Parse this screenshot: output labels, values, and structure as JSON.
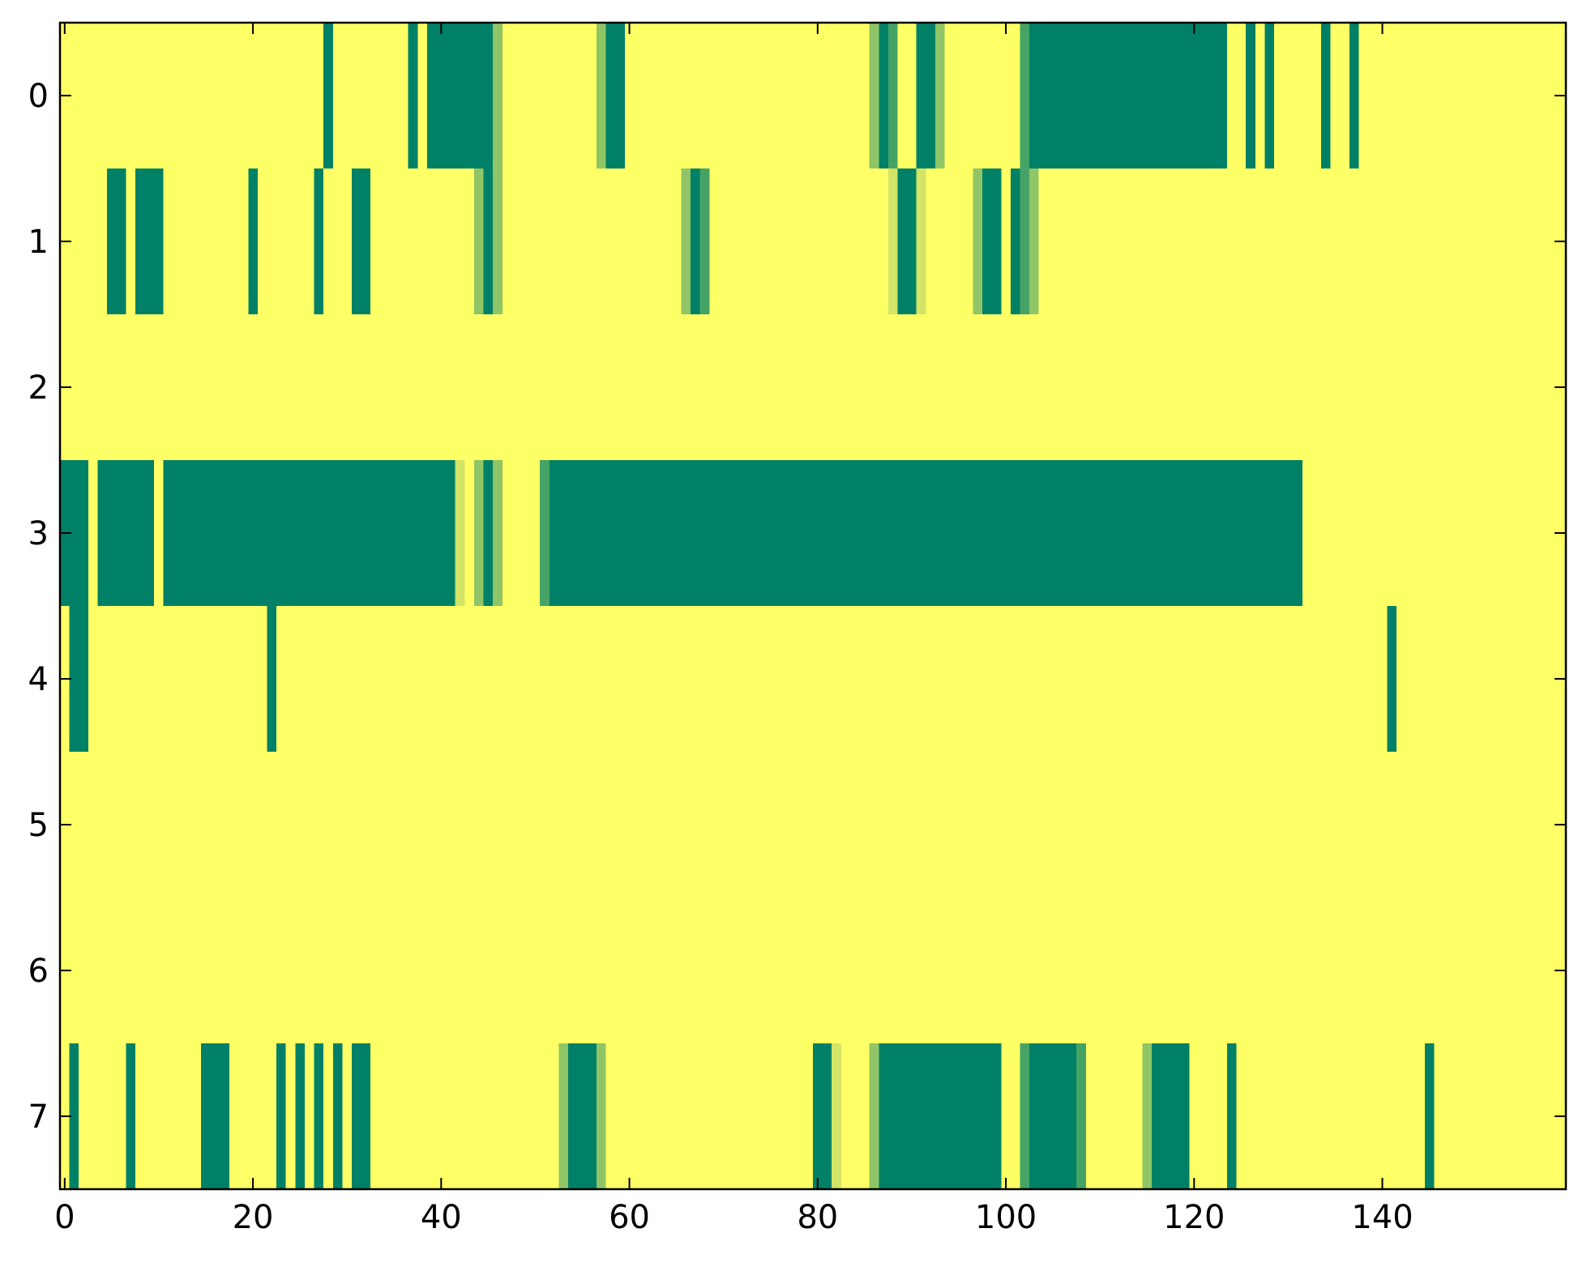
{
  "colors": {
    "yellow": "#ffff66",
    "green": "#008066",
    "mid1": "#45a366",
    "mid2": "#8fc566",
    "light": "#d4e466"
  },
  "chart_data": {
    "type": "heatmap",
    "title": "",
    "xlabel": "",
    "ylabel": "",
    "colormap": "summer (reversed): 0 = yellow, 1 = green",
    "xlim": [
      -0.5,
      159.5
    ],
    "ylim": [
      7.5,
      -0.5
    ],
    "x_ticks": [
      0,
      20,
      40,
      60,
      80,
      100,
      120,
      140
    ],
    "y_ticks": [
      0,
      1,
      2,
      3,
      4,
      5,
      6,
      7
    ],
    "n_cols": 160,
    "n_rows": 8,
    "background_value": 0,
    "cells_note": "Each segment is [row, start_col, end_col_inclusive, value]; all other cells have value 0.",
    "segments": [
      [
        0,
        28,
        28,
        1.0
      ],
      [
        0,
        37,
        37,
        1.0
      ],
      [
        0,
        39,
        45,
        1.0
      ],
      [
        0,
        46,
        46,
        0.7
      ],
      [
        0,
        57,
        57,
        0.5
      ],
      [
        0,
        58,
        59,
        1.0
      ],
      [
        0,
        86,
        86,
        0.5
      ],
      [
        0,
        87,
        87,
        1.0
      ],
      [
        0,
        88,
        88,
        0.8
      ],
      [
        0,
        91,
        92,
        1.0
      ],
      [
        0,
        93,
        93,
        0.5
      ],
      [
        0,
        102,
        102,
        0.8
      ],
      [
        0,
        103,
        123,
        1.0
      ],
      [
        0,
        126,
        126,
        1.0
      ],
      [
        0,
        128,
        128,
        1.0
      ],
      [
        0,
        134,
        134,
        1.0
      ],
      [
        0,
        137,
        137,
        1.0
      ],
      [
        1,
        5,
        6,
        1.0
      ],
      [
        1,
        8,
        10,
        1.0
      ],
      [
        1,
        20,
        20,
        1.0
      ],
      [
        1,
        27,
        27,
        1.0
      ],
      [
        1,
        31,
        32,
        1.0
      ],
      [
        1,
        44,
        44,
        0.5
      ],
      [
        1,
        45,
        45,
        1.0
      ],
      [
        1,
        46,
        46,
        0.7
      ],
      [
        1,
        66,
        66,
        0.5
      ],
      [
        1,
        67,
        67,
        1.0
      ],
      [
        1,
        68,
        68,
        0.8
      ],
      [
        1,
        88,
        88,
        0.2
      ],
      [
        1,
        89,
        90,
        1.0
      ],
      [
        1,
        91,
        91,
        0.2
      ],
      [
        1,
        97,
        97,
        0.5
      ],
      [
        1,
        98,
        99,
        1.0
      ],
      [
        1,
        101,
        101,
        1.0
      ],
      [
        1,
        102,
        102,
        0.8
      ],
      [
        1,
        103,
        103,
        0.5
      ],
      [
        3,
        -0.5,
        2,
        1.0
      ],
      [
        3,
        4,
        9,
        1.0
      ],
      [
        3,
        11,
        41,
        1.0
      ],
      [
        3,
        42,
        42,
        0.2
      ],
      [
        3,
        44,
        44,
        0.5
      ],
      [
        3,
        45,
        45,
        1.0
      ],
      [
        3,
        46,
        46,
        0.7
      ],
      [
        3,
        51,
        51,
        0.8
      ],
      [
        3,
        52,
        131,
        1.0
      ],
      [
        4,
        1,
        2,
        1.0
      ],
      [
        4,
        22,
        22,
        1.0
      ],
      [
        4,
        141,
        141,
        1.0
      ],
      [
        7,
        1,
        1,
        1.0
      ],
      [
        7,
        7,
        7,
        1.0
      ],
      [
        7,
        15,
        17,
        1.0
      ],
      [
        7,
        23,
        23,
        1.0
      ],
      [
        7,
        25,
        25,
        1.0
      ],
      [
        7,
        27,
        27,
        1.0
      ],
      [
        7,
        29,
        29,
        1.0
      ],
      [
        7,
        31,
        32,
        1.0
      ],
      [
        7,
        53,
        53,
        0.7
      ],
      [
        7,
        54,
        56,
        1.0
      ],
      [
        7,
        57,
        57,
        0.7
      ],
      [
        7,
        80,
        81,
        1.0
      ],
      [
        7,
        82,
        82,
        0.2
      ],
      [
        7,
        86,
        86,
        0.5
      ],
      [
        7,
        87,
        99,
        1.0
      ],
      [
        7,
        102,
        102,
        0.8
      ],
      [
        7,
        103,
        107,
        1.0
      ],
      [
        7,
        108,
        108,
        0.8
      ],
      [
        7,
        115,
        115,
        0.5
      ],
      [
        7,
        116,
        119,
        1.0
      ],
      [
        7,
        124,
        124,
        1.0
      ],
      [
        7,
        145,
        145,
        1.0
      ]
    ]
  }
}
